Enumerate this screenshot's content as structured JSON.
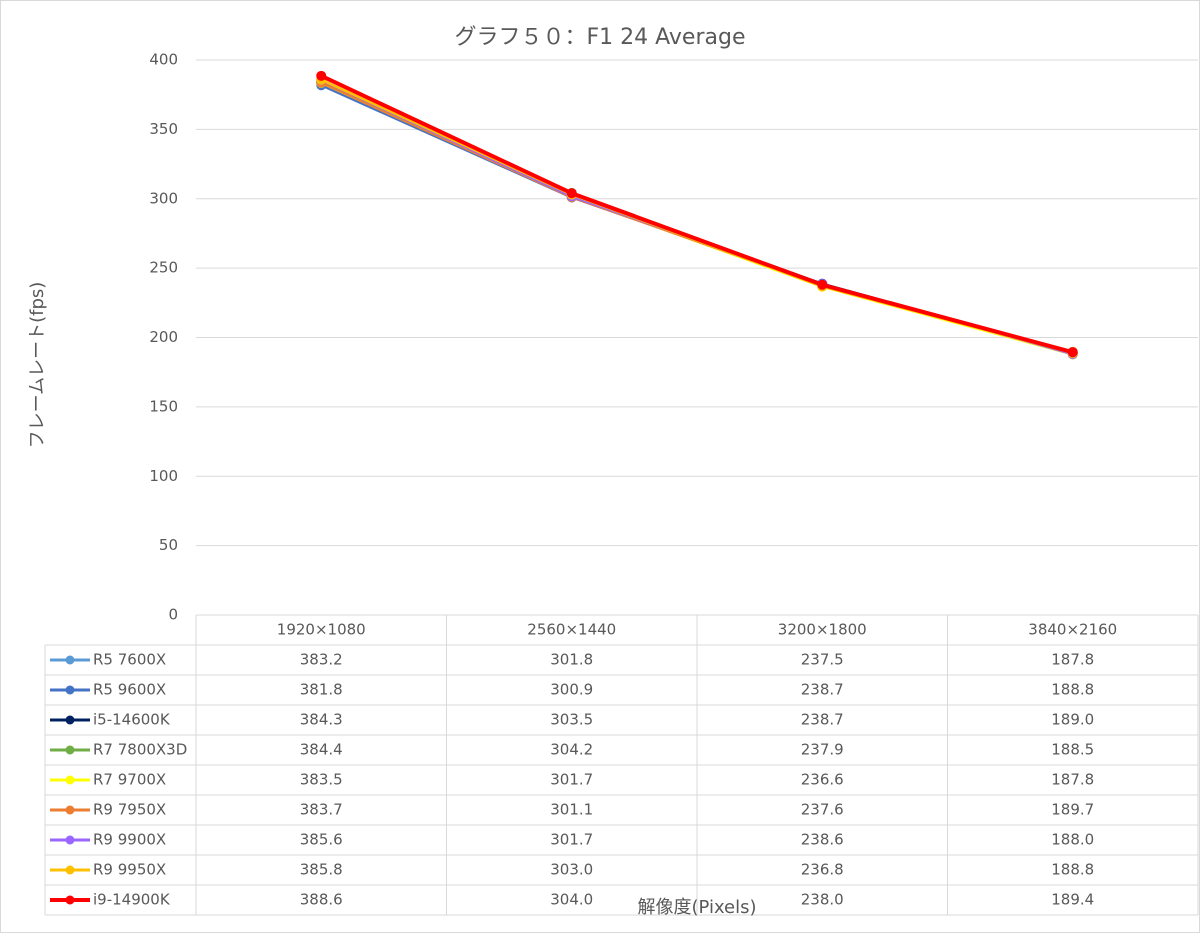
{
  "chart_data": {
    "type": "line",
    "title": "グラフ５０：F1 24 Average",
    "x_label": "解像度(Pixels)",
    "y_label": "フレームレート(fps)",
    "categories": [
      "1920×1080",
      "2560×1440",
      "3200×1800",
      "3840×2160"
    ],
    "ylim": [
      0,
      400
    ],
    "yticks": [
      0,
      50,
      100,
      150,
      200,
      250,
      300,
      350,
      400
    ],
    "grid": true,
    "series": [
      {
        "name": "R5 7600X",
        "color": "#5b9bd5",
        "values": [
          383.2,
          301.8,
          237.5,
          187.8
        ],
        "value_labels": [
          "383.2",
          "301.8",
          "237.5",
          "187.8"
        ]
      },
      {
        "name": "R5 9600X",
        "color": "#4472c4",
        "values": [
          381.8,
          300.9,
          238.7,
          188.8
        ],
        "value_labels": [
          "381.8",
          "300.9",
          "238.7",
          "188.8"
        ]
      },
      {
        "name": "i5-14600K",
        "color": "#002060",
        "values": [
          384.3,
          303.5,
          238.7,
          189.0
        ],
        "value_labels": [
          "384.3",
          "303.5",
          "238.7",
          "189.0"
        ]
      },
      {
        "name": "R7 7800X3D",
        "color": "#70ad47",
        "values": [
          384.4,
          304.2,
          237.9,
          188.5
        ],
        "value_labels": [
          "384.4",
          "304.2",
          "237.9",
          "188.5"
        ]
      },
      {
        "name": "R7 9700X",
        "color": "#ffff00",
        "values": [
          383.5,
          301.7,
          236.6,
          187.8
        ],
        "value_labels": [
          "383.5",
          "301.7",
          "236.6",
          "187.8"
        ]
      },
      {
        "name": "R9 7950X",
        "color": "#ed7d31",
        "values": [
          383.7,
          301.1,
          237.6,
          189.7
        ],
        "value_labels": [
          "383.7",
          "301.1",
          "237.6",
          "189.7"
        ]
      },
      {
        "name": "R9 9900X",
        "color": "#9966ff",
        "values": [
          385.6,
          301.7,
          238.6,
          188.0
        ],
        "value_labels": [
          "385.6",
          "301.7",
          "238.6",
          "188.0"
        ]
      },
      {
        "name": "R9 9950X",
        "color": "#ffc000",
        "values": [
          385.8,
          303.0,
          236.8,
          188.8
        ],
        "value_labels": [
          "385.8",
          "303.0",
          "236.8",
          "188.8"
        ]
      },
      {
        "name": "i9-14900K",
        "color": "#ff0000",
        "values": [
          388.6,
          304.0,
          238.0,
          189.4
        ],
        "value_labels": [
          "388.6",
          "304.0",
          "238.0",
          "189.4"
        ]
      }
    ]
  }
}
